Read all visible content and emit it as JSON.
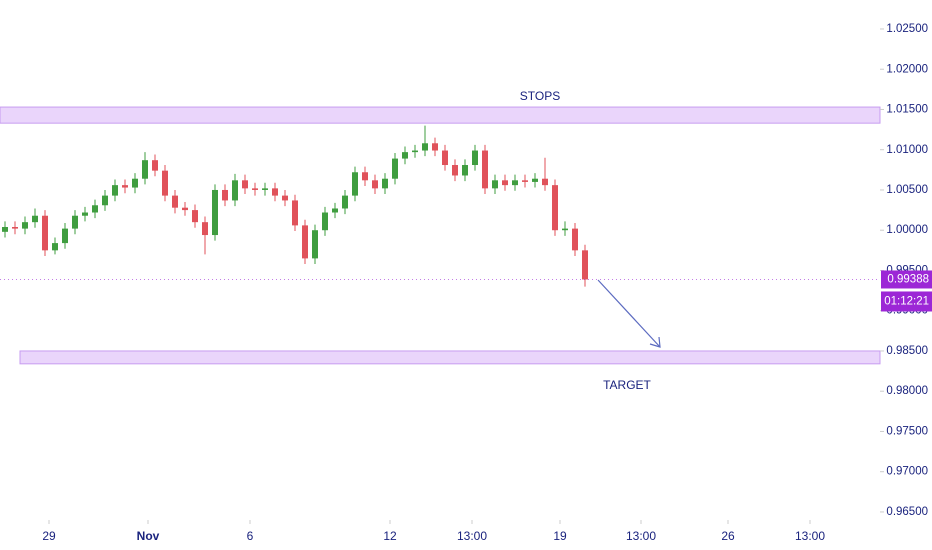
{
  "chart_data": {
    "type": "candlestick",
    "up_color": "#3f9d3f",
    "down_color": "#e0525a",
    "x": [
      0.5,
      1.5,
      2.5,
      3.5,
      4.5,
      5.5,
      6.5,
      7.5,
      8.5,
      9.5,
      10.5,
      11.5,
      12.5,
      13.5,
      14.5,
      15.5,
      16.5,
      17.5,
      18.5,
      19.5,
      20.5,
      21.5,
      22.5,
      23.5,
      24.5,
      25.5,
      26.5,
      27.5,
      28.5,
      29.5,
      30.5,
      31.5,
      32.5,
      33.5,
      34.5,
      35.5,
      36.5,
      37.5,
      38.5,
      39.5,
      40.5,
      41.5,
      42.5,
      43.5,
      44.5,
      45.5,
      46.5,
      47.5,
      48.5,
      49.5,
      50.5,
      51.5,
      52.5,
      53.5,
      54.5,
      55.5,
      56.5,
      57.5,
      58.5
    ],
    "open": [
      0.9998,
      1.0004,
      1.0002,
      1.001,
      1.0018,
      0.9975,
      0.9984,
      1.0002,
      1.0018,
      1.0022,
      1.0031,
      1.0043,
      1.0056,
      1.0053,
      1.0064,
      1.0087,
      1.0074,
      1.0043,
      1.0028,
      1.0025,
      1.001,
      0.9994,
      1.005,
      1.0037,
      1.0062,
      1.0052,
      1.005,
      1.0052,
      1.0043,
      1.0037,
      1.0006,
      0.9965,
      1.0,
      1.0022,
      1.0027,
      1.0043,
      1.0072,
      1.0062,
      1.0052,
      1.0064,
      1.0089,
      1.0097,
      1.0099,
      1.0108,
      1.0099,
      1.0081,
      1.0068,
      1.0081,
      1.0099,
      1.0052,
      1.0062,
      1.0056,
      1.0062,
      1.006,
      1.0064,
      1.0056,
      1.0,
      1.0002,
      0.9975
    ],
    "high": [
      1.0011,
      1.0011,
      1.0017,
      1.0027,
      1.0025,
      0.9991,
      1.0009,
      1.0025,
      1.0029,
      1.0038,
      1.005,
      1.0063,
      1.0063,
      1.0071,
      1.0097,
      1.0094,
      1.0081,
      1.005,
      1.0035,
      1.0032,
      1.0017,
      1.0057,
      1.0057,
      1.007,
      1.0069,
      1.0059,
      1.0059,
      1.0059,
      1.005,
      1.0044,
      1.0013,
      1.0007,
      1.0029,
      1.0034,
      1.005,
      1.0079,
      1.0079,
      1.0069,
      1.0071,
      1.0096,
      1.0104,
      1.0106,
      1.013,
      1.0115,
      1.0106,
      1.0088,
      1.0088,
      1.0106,
      1.0106,
      1.0069,
      1.0069,
      1.0069,
      1.0069,
      1.0071,
      1.009,
      1.0063,
      1.0011,
      1.0009,
      0.9982
    ],
    "low": [
      0.9991,
      0.9995,
      0.9995,
      1.0003,
      0.9968,
      0.997,
      0.9977,
      0.9995,
      1.0011,
      1.0015,
      1.0024,
      1.0036,
      1.0046,
      1.0046,
      1.0057,
      1.0067,
      1.0036,
      1.0021,
      1.0018,
      1.0003,
      0.997,
      0.9987,
      1.003,
      1.003,
      1.0045,
      1.0043,
      1.0043,
      1.0036,
      1.003,
      0.9999,
      0.9958,
      0.9958,
      0.9993,
      1.0015,
      1.002,
      1.0036,
      1.0055,
      1.0045,
      1.0045,
      1.0057,
      1.0082,
      1.009,
      1.0092,
      1.0092,
      1.0074,
      1.0061,
      1.0061,
      1.0074,
      1.0045,
      1.0045,
      1.0049,
      1.0049,
      1.0053,
      1.0053,
      1.0049,
      0.9993,
      0.9993,
      0.9968,
      0.993
    ],
    "close": [
      1.0004,
      1.0002,
      1.001,
      1.0018,
      0.9975,
      0.9984,
      1.0002,
      1.0018,
      1.0022,
      1.0031,
      1.0043,
      1.0056,
      1.0053,
      1.0064,
      1.0087,
      1.0074,
      1.0043,
      1.0028,
      1.0025,
      1.001,
      0.9994,
      1.005,
      1.0037,
      1.0062,
      1.0052,
      1.005,
      1.0052,
      1.0043,
      1.0037,
      1.0006,
      0.9965,
      1.0,
      1.0022,
      1.0027,
      1.0043,
      1.0072,
      1.0062,
      1.0052,
      1.0064,
      1.0089,
      1.0097,
      1.0099,
      1.0108,
      1.0099,
      1.0081,
      1.0068,
      1.0081,
      1.0099,
      1.0052,
      1.0062,
      1.0056,
      1.0062,
      1.006,
      1.0064,
      1.0056,
      1.0,
      1.0002,
      0.9975,
      0.99388
    ],
    "xlim": [
      0,
      88
    ],
    "xticks": [
      {
        "value": 4.9,
        "label": "29"
      },
      {
        "value": 14.8,
        "label": "Nov"
      },
      {
        "value": 25,
        "label": "6"
      },
      {
        "value": 39,
        "label": "12"
      },
      {
        "value": 47.2,
        "label": "13:00"
      },
      {
        "value": 56,
        "label": "19"
      },
      {
        "value": 64.1,
        "label": "13:00"
      },
      {
        "value": 72.8,
        "label": "26"
      },
      {
        "value": 81,
        "label": "13:00"
      }
    ],
    "ylim": [
      0.964,
      1.0286
    ],
    "yticks": [
      {
        "value": 0.965,
        "label": "0.96500"
      },
      {
        "value": 0.97,
        "label": "0.97000"
      },
      {
        "value": 0.975,
        "label": "0.97500"
      },
      {
        "value": 0.98,
        "label": "0.98000"
      },
      {
        "value": 0.985,
        "label": "0.98500"
      },
      {
        "value": 0.99,
        "label": "0.99000"
      },
      {
        "value": 0.995,
        "label": "0.99500"
      },
      {
        "value": 1.0,
        "label": "1.00000"
      },
      {
        "value": 1.005,
        "label": "1.00500"
      },
      {
        "value": 1.01,
        "label": "1.01000"
      },
      {
        "value": 1.015,
        "label": "1.01500"
      },
      {
        "value": 1.02,
        "label": "1.02000"
      },
      {
        "value": 1.025,
        "label": "1.02500"
      }
    ],
    "zones": [
      {
        "label": "STOPS",
        "xlim": [
          0,
          88
        ],
        "ylim": [
          1.0133,
          1.0153
        ],
        "color": "#ead5fb"
      },
      {
        "label": "TARGET",
        "xlim": [
          2,
          88
        ],
        "ylim": [
          0.9834,
          0.985
        ],
        "color": "#ead5fb"
      }
    ],
    "price_label": {
      "value": 0.99388,
      "label": "0.99388",
      "color": "#9c27d6"
    },
    "countdown": "01:12:21"
  }
}
